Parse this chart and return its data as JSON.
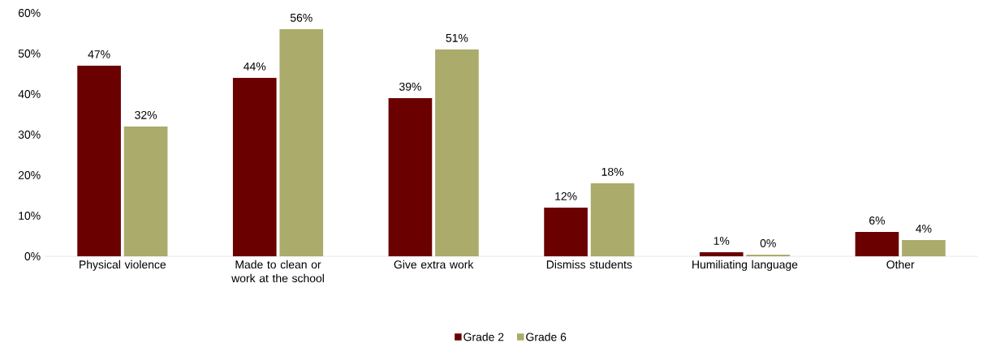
{
  "chart_data": {
    "type": "bar",
    "categories": [
      "Physical violence",
      "Made to clean or work at the school",
      "Give extra work",
      "Dismiss students",
      "Humiliating language",
      "Other"
    ],
    "series": [
      {
        "name": "Grade 2",
        "color": "#6b0000",
        "values": [
          47,
          44,
          39,
          12,
          1,
          6
        ],
        "value_labels": [
          "47%",
          "44%",
          "39%",
          "12%",
          "1%",
          "6%"
        ]
      },
      {
        "name": "Grade 6",
        "color": "#abab6b",
        "values": [
          32,
          56,
          51,
          18,
          0.4,
          4
        ],
        "value_labels": [
          "32%",
          "56%",
          "51%",
          "18%",
          "0%",
          "4%"
        ]
      }
    ],
    "ylim": [
      0,
      60
    ],
    "yticks": [
      {
        "value": 0,
        "label": "0%"
      },
      {
        "value": 10,
        "label": "10%"
      },
      {
        "value": 20,
        "label": "20%"
      },
      {
        "value": 30,
        "label": "30%"
      },
      {
        "value": 40,
        "label": "40%"
      },
      {
        "value": 50,
        "label": "50%"
      },
      {
        "value": 60,
        "label": "60%"
      }
    ],
    "legend": "bottom",
    "grid": false
  }
}
